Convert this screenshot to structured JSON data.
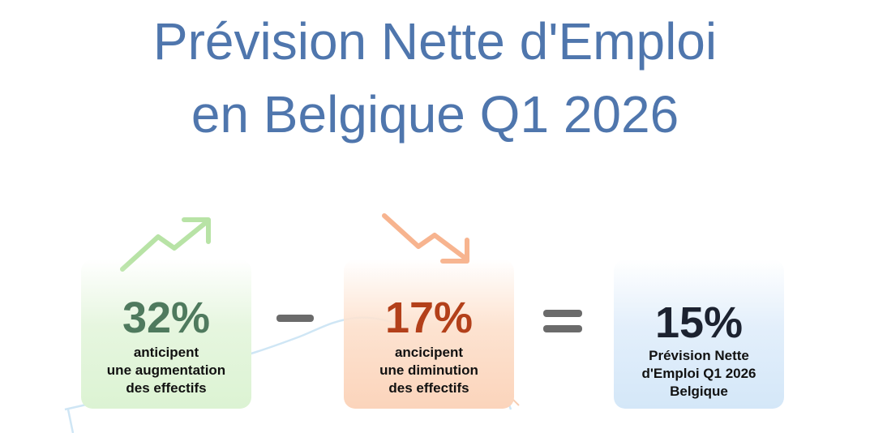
{
  "title": {
    "line1": "Prévision Nette d'Emploi",
    "line2": "en Belgique Q1 2026"
  },
  "cards": {
    "increase": {
      "value": "32%",
      "line1": "anticipent",
      "line2": "une augmentation",
      "line3": "des effectifs",
      "color": "#4f7a5e",
      "icon": "trend-up-arrow-icon"
    },
    "decrease": {
      "value": "17%",
      "line1": "ancicipent",
      "line2": "une diminution",
      "line3": "des effectifs",
      "color": "#b3401a",
      "icon": "trend-down-arrow-icon"
    },
    "net": {
      "value": "15%",
      "line1": "Prévision Nette",
      "line2": "d'Emploi Q1 2026",
      "line3": "Belgique",
      "color": "#1c2230"
    }
  },
  "operators": {
    "minus": "minus-icon",
    "equals": "equals-icon"
  },
  "accent_color": "#4f76ad"
}
